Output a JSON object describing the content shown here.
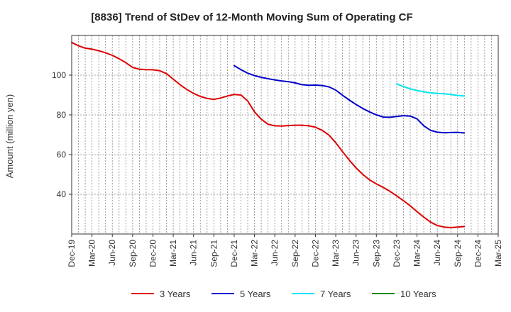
{
  "chart_data": {
    "type": "line",
    "title": "[8836]  Trend of StDev of 12-Month Moving Sum of Operating CF",
    "xlabel": "",
    "ylabel": "Amount (million yen)",
    "ylim": [
      20,
      120
    ],
    "yticks": [
      40,
      60,
      80,
      100
    ],
    "grid": true,
    "legend_position": "bottom",
    "x_ticks": [
      "Dec-19",
      "Mar-20",
      "Jun-20",
      "Sep-20",
      "Dec-20",
      "Mar-21",
      "Jun-21",
      "Sep-21",
      "Dec-21",
      "Mar-22",
      "Jun-22",
      "Sep-22",
      "Dec-22",
      "Mar-23",
      "Jun-23",
      "Sep-23",
      "Dec-23",
      "Mar-24",
      "Jun-24",
      "Sep-24",
      "Dec-24",
      "Mar-25"
    ],
    "series": [
      {
        "name": "3 Years",
        "color": "#dd0000",
        "points": [
          [
            "Dec-19",
            116.5
          ],
          [
            "Jan-20",
            114.8
          ],
          [
            "Feb-20",
            113.6
          ],
          [
            "Mar-20",
            113.1
          ],
          [
            "Apr-20",
            112.3
          ],
          [
            "May-20",
            111.3
          ],
          [
            "Jun-20",
            110.0
          ],
          [
            "Jul-20",
            108.3
          ],
          [
            "Aug-20",
            106.3
          ],
          [
            "Sep-20",
            103.9
          ],
          [
            "Oct-20",
            103.0
          ],
          [
            "Nov-20",
            102.8
          ],
          [
            "Dec-20",
            102.7
          ],
          [
            "Jan-21",
            102.2
          ],
          [
            "Feb-21",
            100.8
          ],
          [
            "Mar-21",
            98.0
          ],
          [
            "Apr-21",
            95.2
          ],
          [
            "May-21",
            92.8
          ],
          [
            "Jun-21",
            90.8
          ],
          [
            "Jul-21",
            89.3
          ],
          [
            "Aug-21",
            88.3
          ],
          [
            "Sep-21",
            87.8
          ],
          [
            "Oct-21",
            88.5
          ],
          [
            "Nov-21",
            89.5
          ],
          [
            "Dec-21",
            90.3
          ],
          [
            "Jan-22",
            90.0
          ],
          [
            "Feb-22",
            87.0
          ],
          [
            "Mar-22",
            81.5
          ],
          [
            "Apr-22",
            77.8
          ],
          [
            "May-22",
            75.3
          ],
          [
            "Jun-22",
            74.5
          ],
          [
            "Jul-22",
            74.4
          ],
          [
            "Aug-22",
            74.6
          ],
          [
            "Sep-22",
            74.8
          ],
          [
            "Oct-22",
            74.8
          ],
          [
            "Nov-22",
            74.5
          ],
          [
            "Dec-22",
            73.8
          ],
          [
            "Jan-23",
            72.2
          ],
          [
            "Feb-23",
            69.8
          ],
          [
            "Mar-23",
            66.0
          ],
          [
            "Apr-23",
            61.5
          ],
          [
            "May-23",
            57.2
          ],
          [
            "Jun-23",
            53.3
          ],
          [
            "Jul-23",
            50.0
          ],
          [
            "Aug-23",
            47.3
          ],
          [
            "Sep-23",
            45.2
          ],
          [
            "Oct-23",
            43.5
          ],
          [
            "Nov-23",
            41.5
          ],
          [
            "Dec-23",
            39.2
          ],
          [
            "Jan-24",
            36.8
          ],
          [
            "Feb-24",
            34.2
          ],
          [
            "Mar-24",
            31.3
          ],
          [
            "Apr-24",
            28.5
          ],
          [
            "May-24",
            26.0
          ],
          [
            "Jun-24",
            24.3
          ],
          [
            "Jul-24",
            23.5
          ],
          [
            "Aug-24",
            23.2
          ],
          [
            "Sep-24",
            23.5
          ],
          [
            "Oct-24",
            23.8
          ]
        ]
      },
      {
        "name": "5 Years",
        "color": "#0000cc",
        "points": [
          [
            "Dec-21",
            104.8
          ],
          [
            "Jan-22",
            102.8
          ],
          [
            "Feb-22",
            101.0
          ],
          [
            "Mar-22",
            99.8
          ],
          [
            "Apr-22",
            98.9
          ],
          [
            "May-22",
            98.2
          ],
          [
            "Jun-22",
            97.6
          ],
          [
            "Jul-22",
            97.1
          ],
          [
            "Aug-22",
            96.7
          ],
          [
            "Sep-22",
            96.1
          ],
          [
            "Oct-22",
            95.2
          ],
          [
            "Nov-22",
            94.9
          ],
          [
            "Dec-22",
            95.0
          ],
          [
            "Jan-23",
            94.8
          ],
          [
            "Feb-23",
            94.1
          ],
          [
            "Mar-23",
            92.5
          ],
          [
            "Apr-23",
            89.9
          ],
          [
            "May-23",
            87.5
          ],
          [
            "Jun-23",
            85.2
          ],
          [
            "Jul-23",
            83.2
          ],
          [
            "Aug-23",
            81.5
          ],
          [
            "Sep-23",
            80.0
          ],
          [
            "Oct-23",
            78.9
          ],
          [
            "Nov-23",
            78.8
          ],
          [
            "Dec-23",
            79.2
          ],
          [
            "Jan-24",
            79.6
          ],
          [
            "Feb-24",
            79.4
          ],
          [
            "Mar-24",
            78.0
          ],
          [
            "Apr-24",
            74.5
          ],
          [
            "May-24",
            72.2
          ],
          [
            "Jun-24",
            71.3
          ],
          [
            "Jul-24",
            71.0
          ],
          [
            "Aug-24",
            71.1
          ],
          [
            "Sep-24",
            71.2
          ],
          [
            "Oct-24",
            70.9
          ]
        ]
      },
      {
        "name": "7 Years",
        "color": "#00e5ee",
        "points": [
          [
            "Dec-23",
            95.6
          ],
          [
            "Jan-24",
            94.3
          ],
          [
            "Feb-24",
            93.1
          ],
          [
            "Mar-24",
            92.3
          ],
          [
            "Apr-24",
            91.6
          ],
          [
            "May-24",
            91.1
          ],
          [
            "Jun-24",
            90.8
          ],
          [
            "Jul-24",
            90.6
          ],
          [
            "Aug-24",
            90.3
          ],
          [
            "Sep-24",
            89.8
          ],
          [
            "Oct-24",
            89.5
          ]
        ]
      },
      {
        "name": "10 Years",
        "color": "#228b22",
        "points": []
      }
    ]
  }
}
